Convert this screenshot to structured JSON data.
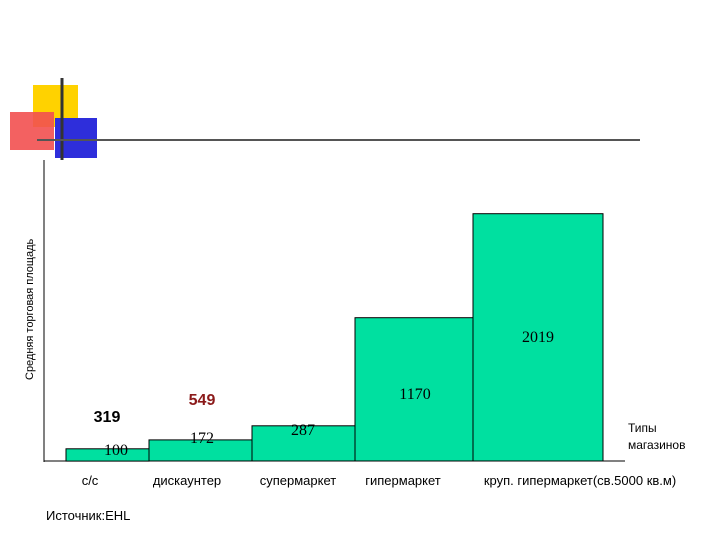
{
  "chart_data": {
    "type": "bar",
    "ylabel": "Средняя торговая площадь",
    "xlabel": "Типы магазинов",
    "xlabel_lines": [
      "Типы",
      "магазинов"
    ],
    "categories": [
      "с/с",
      "дискаунтер",
      "супермаркет",
      "гипермаркет",
      "круп. гипермаркет(св.5000 кв.м)"
    ],
    "values": [
      100,
      172,
      287,
      1170,
      2019
    ],
    "value_labels": [
      "100",
      "172",
      "287",
      "1170",
      "2019"
    ],
    "extra_labels": [
      {
        "category": "с/с",
        "text": "319"
      },
      {
        "category": "дискаунтер",
        "text": "549",
        "color": "#8b1a1a"
      }
    ],
    "source": "Источник:EHL",
    "bar_color": "#00e0a0"
  }
}
